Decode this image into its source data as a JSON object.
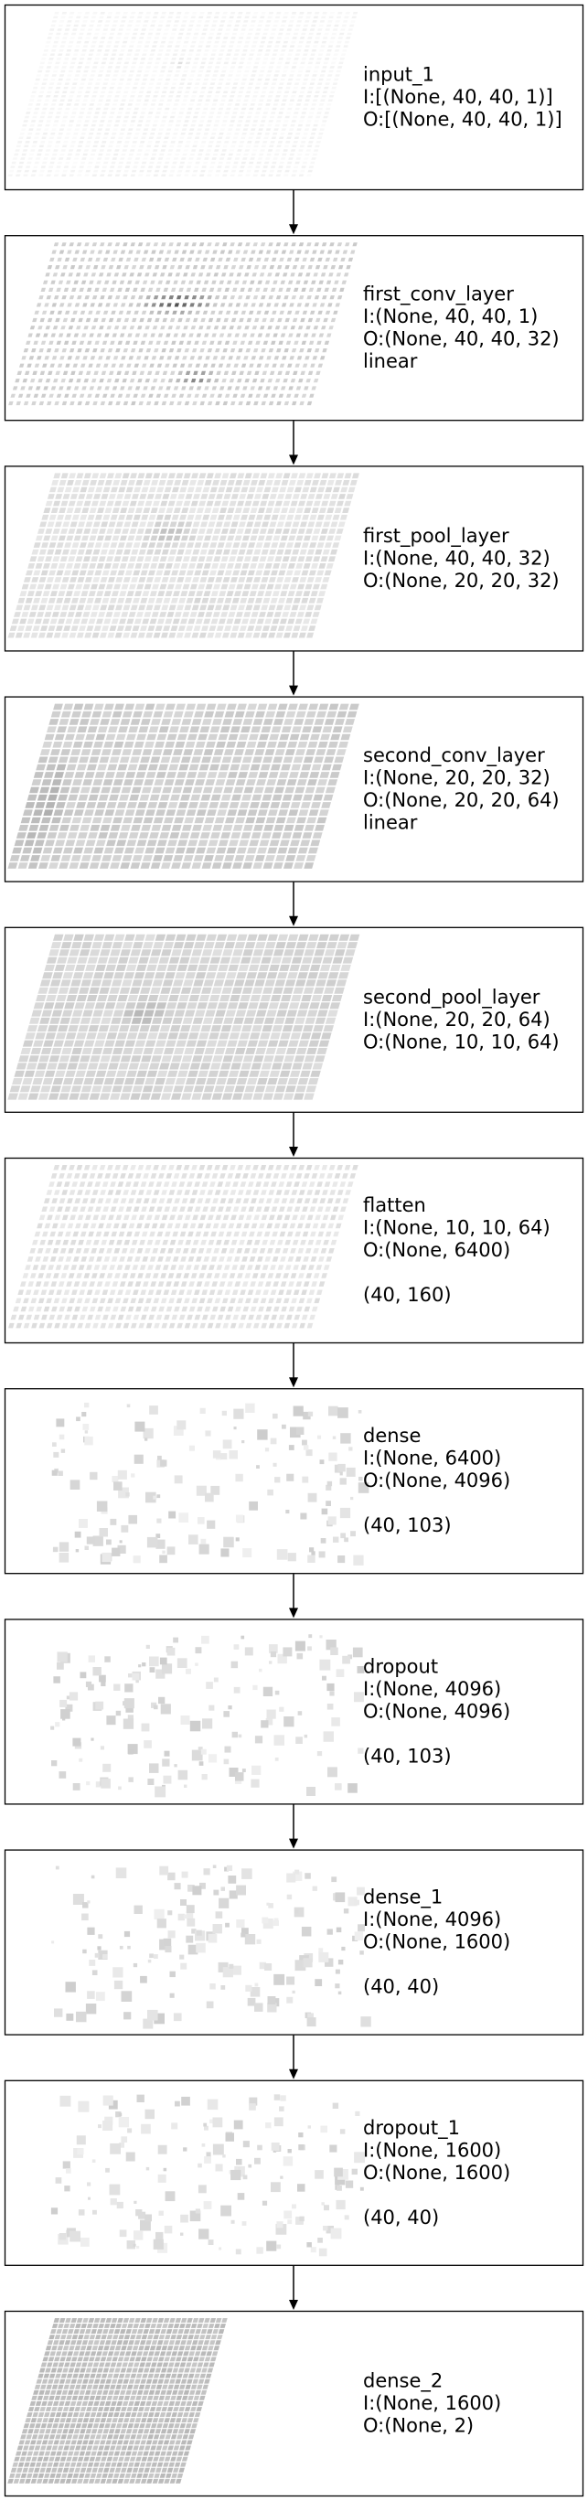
{
  "layers": [
    {
      "name": "input_1",
      "lines": [
        "input_1",
        "I:[(None, 40, 40, 1)]",
        "O:[(None, 40, 40, 1)]"
      ],
      "style": "input"
    },
    {
      "name": "first_conv_layer",
      "lines": [
        "first_conv_layer",
        "I:(None, 40, 40, 1)",
        "O:(None, 40, 40, 32)",
        "linear"
      ],
      "style": "conv1"
    },
    {
      "name": "first_pool_layer",
      "lines": [
        "first_pool_layer",
        "I:(None, 40, 40, 32)",
        "O:(None, 20, 20, 32)"
      ],
      "style": "pool1"
    },
    {
      "name": "second_conv_layer",
      "lines": [
        "second_conv_layer",
        "I:(None, 20, 20, 32)",
        "O:(None, 20, 20, 64)",
        "linear"
      ],
      "style": "conv2"
    },
    {
      "name": "second_pool_layer",
      "lines": [
        "second_pool_layer",
        "I:(None, 20, 20, 64)",
        "O:(None, 10, 10, 64)"
      ],
      "style": "pool2"
    },
    {
      "name": "flatten",
      "lines": [
        "flatten",
        "I:(None, 10, 10, 64)",
        "O:(None, 6400)",
        "",
        "(40, 160)"
      ],
      "style": "flatten"
    },
    {
      "name": "dense",
      "lines": [
        "dense",
        "I:(None, 6400)",
        "O:(None, 4096)",
        "",
        "(40, 103)"
      ],
      "style": "sparse"
    },
    {
      "name": "dropout",
      "lines": [
        "dropout",
        "I:(None, 4096)",
        "O:(None, 4096)",
        "",
        "(40, 103)"
      ],
      "style": "sparse"
    },
    {
      "name": "dense_1",
      "lines": [
        "dense_1",
        "I:(None, 4096)",
        "O:(None, 1600)",
        "",
        "(40, 40)"
      ],
      "style": "sparse"
    },
    {
      "name": "dropout_1",
      "lines": [
        "dropout_1",
        "I:(None, 1600)",
        "O:(None, 1600)",
        "",
        "(40, 40)"
      ],
      "style": "sparse"
    },
    {
      "name": "dense_2",
      "lines": [
        "dense_2",
        "I:(None, 1600)",
        "O:(None, 2)"
      ],
      "style": "dense_out"
    }
  ]
}
